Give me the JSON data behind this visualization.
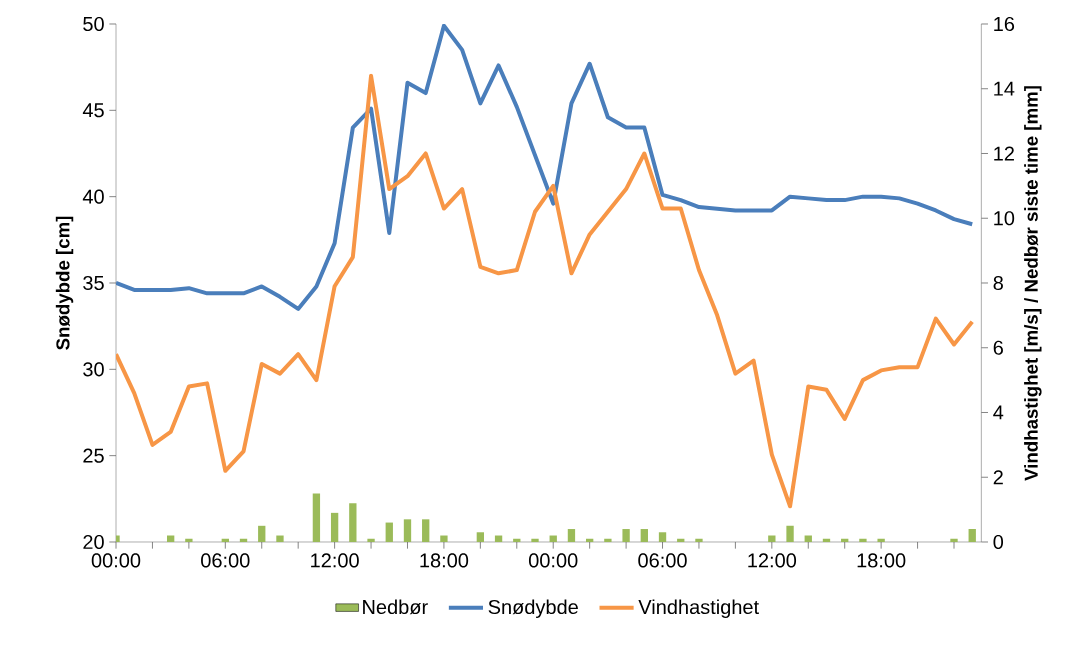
{
  "chart_data": {
    "type": "line",
    "categories": [
      "00:00",
      null,
      null,
      null,
      null,
      null,
      "06:00",
      null,
      null,
      null,
      null,
      null,
      "12:00",
      null,
      null,
      null,
      null,
      null,
      "18:00",
      null,
      null,
      null,
      null,
      null,
      "00:00",
      null,
      null,
      null,
      null,
      null,
      "06:00",
      null,
      null,
      null,
      null,
      null,
      "12:00",
      null,
      null,
      null,
      null,
      null,
      "18:00",
      null,
      null,
      null,
      null,
      null
    ],
    "ylabel": "Snødybde [cm]",
    "y2label": "Vindhastighet [m/s] / Nedbør siste time [mm]",
    "ylim": [
      20,
      50
    ],
    "yticks": [
      20,
      25,
      30,
      35,
      40,
      45,
      50
    ],
    "y2lim": [
      0,
      16
    ],
    "y2ticks": [
      0,
      2,
      4,
      6,
      8,
      10,
      12,
      14,
      16
    ],
    "legend": "bottom",
    "series": [
      {
        "name": "Nedbør",
        "type": "bar",
        "axis": "y2",
        "color": "#9bbb59",
        "values": [
          0.2,
          0,
          0,
          0.2,
          0.1,
          0,
          0.1,
          0.1,
          0.5,
          0.2,
          0,
          1.5,
          0.9,
          1.2,
          0.1,
          0.6,
          0.7,
          0.7,
          0.2,
          0,
          0.3,
          0.2,
          0.1,
          0.1,
          0.2,
          0.4,
          0.1,
          0.1,
          0.4,
          0.4,
          0.3,
          0.1,
          0.1,
          0,
          0,
          0,
          0.2,
          0.5,
          0.2,
          0.1,
          0.1,
          0.1,
          0.1,
          0,
          0,
          0,
          0.1,
          0.4
        ]
      },
      {
        "name": "Snødybde",
        "color": "#4a7ebb",
        "values": [
          35.0,
          34.6,
          34.6,
          34.6,
          34.7,
          34.4,
          34.4,
          34.4,
          34.8,
          34.2,
          33.5,
          34.8,
          37.3,
          44.0,
          45.1,
          37.9,
          46.6,
          46.0,
          49.9,
          48.5,
          45.4,
          47.6,
          45.2,
          42.4,
          39.6,
          45.4,
          47.7,
          44.6,
          44.0,
          44.0,
          40.1,
          39.8,
          39.4,
          39.3,
          39.2,
          39.2,
          39.2,
          40.0,
          39.9,
          39.8,
          39.8,
          40.0,
          40.0,
          39.9,
          39.6,
          39.2,
          38.7,
          38.4
        ]
      },
      {
        "name": "Vindhastighet",
        "axis": "y2",
        "color": "#f79646",
        "values": [
          5.8,
          4.6,
          3.0,
          3.4,
          4.8,
          4.9,
          2.2,
          2.8,
          5.5,
          5.2,
          5.8,
          5.0,
          7.9,
          8.8,
          14.4,
          10.9,
          11.3,
          12.0,
          10.3,
          10.9,
          8.5,
          8.3,
          8.4,
          10.2,
          11.0,
          8.3,
          9.5,
          10.2,
          10.9,
          12.0,
          10.3,
          10.3,
          8.4,
          7.0,
          5.2,
          5.6,
          2.7,
          1.1,
          4.8,
          4.7,
          3.8,
          5.0,
          5.3,
          5.4,
          5.4,
          6.9,
          6.1,
          6.8
        ]
      }
    ]
  }
}
